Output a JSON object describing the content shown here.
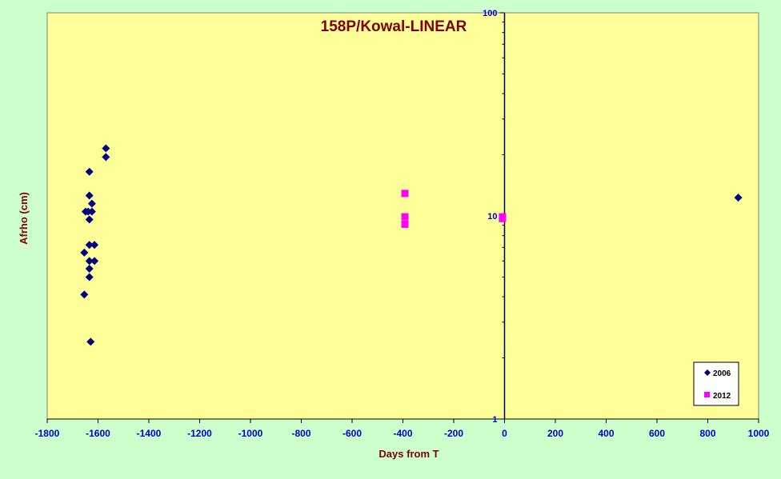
{
  "chart_data": {
    "type": "scatter",
    "title": "158P/Kowal-LINEAR",
    "xlabel": "Days from  T",
    "ylabel": "Afrho (cm)",
    "xlim": [
      -1800,
      1000
    ],
    "ylim": [
      1,
      100
    ],
    "y_scale": "log",
    "x_ticks": [
      -1800,
      -1600,
      -1400,
      -1200,
      -1000,
      -800,
      -600,
      -400,
      -200,
      0,
      200,
      400,
      600,
      800,
      1000
    ],
    "y_ticks": [
      1,
      10,
      100
    ],
    "legend_position": "bottom-right",
    "colors": {
      "plot_bg": "#ffff99",
      "page_bg": "#ccffcc",
      "tick_text": "#0000cc",
      "title_text": "#800000"
    },
    "series": [
      {
        "name": "2006",
        "marker": "diamond",
        "color": "#000080",
        "points": [
          [
            -1569,
            21.5
          ],
          [
            -1569,
            19.5
          ],
          [
            -1634,
            16.5
          ],
          [
            -1634,
            12.6
          ],
          [
            -1624,
            11.5
          ],
          [
            -1649,
            10.5
          ],
          [
            -1639,
            10.5
          ],
          [
            -1624,
            10.5
          ],
          [
            -1634,
            9.6
          ],
          [
            -1634,
            7.2
          ],
          [
            -1614,
            7.2
          ],
          [
            -1654,
            6.6
          ],
          [
            -1634,
            6.0
          ],
          [
            -1614,
            6.0
          ],
          [
            -1634,
            5.5
          ],
          [
            -1634,
            5.0
          ],
          [
            -1654,
            4.1
          ],
          [
            -1629,
            2.4
          ],
          [
            920,
            12.3
          ]
        ]
      },
      {
        "name": "2012",
        "marker": "square",
        "color": "#ff00ff",
        "points": [
          [
            -392,
            12.9
          ],
          [
            -392,
            9.9
          ],
          [
            -392,
            9.1
          ],
          [
            -8,
            9.9
          ],
          [
            -8,
            9.7
          ]
        ]
      }
    ]
  }
}
